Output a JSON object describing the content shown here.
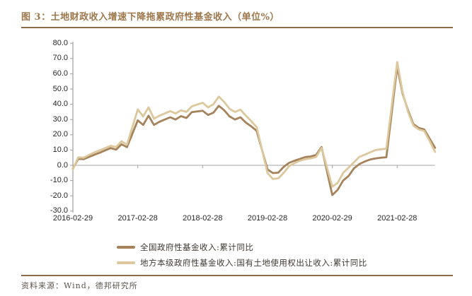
{
  "figure": {
    "title": "图 3：土地财政收入增速下降拖累政府性基金收入（单位%）",
    "source": "资料来源：Wind，德邦研究所"
  },
  "colors": {
    "title_brown": "#9e774b",
    "rule_brown": "#8c6d45",
    "axis_gray": "#9d9d9d",
    "zero_line_gray": "#a6a6a6",
    "series_national": "#a5825a",
    "series_land": "#dcc89c"
  },
  "chart_data": {
    "type": "line",
    "title": "土地财政收入增速下降拖累政府性基金收入（单位%）",
    "xlabel": "",
    "ylabel": "",
    "ylim": [
      -30,
      80
    ],
    "ytick_step": 10,
    "grid": "zero-line-only",
    "legend_position": "bottom",
    "y_ticks": [
      "80.0",
      "70.0",
      "60.0",
      "50.0",
      "40.0",
      "30.0",
      "20.0",
      "10.0",
      "0.0",
      "-10.0",
      "-20.0",
      "-30.0"
    ],
    "x_ticks": [
      "2016-02-29",
      "2017-02-28",
      "2018-02-28",
      "2019-02-28",
      "2020-02-29",
      "2021-02-28"
    ],
    "x": [
      "2016-02",
      "2016-03",
      "2016-04",
      "2016-05",
      "2016-06",
      "2016-07",
      "2016-08",
      "2016-09",
      "2016-10",
      "2016-11",
      "2016-12",
      "2017-02",
      "2017-03",
      "2017-04",
      "2017-05",
      "2017-06",
      "2017-07",
      "2017-08",
      "2017-09",
      "2017-10",
      "2017-11",
      "2017-12",
      "2018-02",
      "2018-03",
      "2018-04",
      "2018-05",
      "2018-06",
      "2018-07",
      "2018-08",
      "2018-09",
      "2018-10",
      "2018-11",
      "2018-12",
      "2019-02",
      "2019-03",
      "2019-04",
      "2019-05",
      "2019-06",
      "2019-07",
      "2019-08",
      "2019-09",
      "2019-10",
      "2019-11",
      "2019-12",
      "2020-02",
      "2020-03",
      "2020-04",
      "2020-05",
      "2020-06",
      "2020-07",
      "2020-08",
      "2020-09",
      "2020-10",
      "2020-11",
      "2020-12",
      "2021-02",
      "2021-03",
      "2021-04",
      "2021-05",
      "2021-06",
      "2021-07",
      "2021-08",
      "2021-09"
    ],
    "series": [
      {
        "name": "全国政府性基金收入:累计同比",
        "color": "#a5825a",
        "values": [
          -2.2,
          4.2,
          4.0,
          5.5,
          7.0,
          8.3,
          9.8,
          11.3,
          10.3,
          13.8,
          11.9,
          29.5,
          26.5,
          32.5,
          26.5,
          28.5,
          30.0,
          31.5,
          30.0,
          32.2,
          31.0,
          34.8,
          35.8,
          33.0,
          34.5,
          39.0,
          36.0,
          32.0,
          30.0,
          31.5,
          28.0,
          25.5,
          22.6,
          -2.7,
          -5.1,
          -4.8,
          -1.0,
          1.6,
          3.0,
          4.2,
          5.4,
          5.8,
          6.8,
          12.0,
          -19.5,
          -16.0,
          -10.0,
          -7.0,
          -2.0,
          0.8,
          2.5,
          3.8,
          4.5,
          5.0,
          5.3,
          64.5,
          47.0,
          36.0,
          27.0,
          24.5,
          23.5,
          17.5,
          11.5
        ]
      },
      {
        "name": "地方本级政府性基金收入:国有土地使用权出让收入:累计同比",
        "color": "#dcc89c",
        "values": [
          -2.6,
          5.2,
          5.0,
          6.8,
          8.5,
          9.8,
          11.3,
          12.8,
          12.0,
          15.8,
          13.5,
          36.6,
          32.0,
          38.0,
          30.5,
          32.5,
          34.0,
          35.5,
          34.0,
          36.0,
          35.0,
          38.6,
          41.0,
          38.0,
          40.0,
          45.0,
          41.5,
          37.0,
          35.0,
          36.5,
          32.5,
          29.0,
          25.0,
          -5.0,
          -9.0,
          -8.5,
          -5.0,
          -0.5,
          1.5,
          3.0,
          4.0,
          4.5,
          5.5,
          11.4,
          -14.0,
          -11.5,
          -5.0,
          -1.5,
          2.0,
          5.5,
          7.0,
          8.5,
          10.0,
          10.5,
          10.9,
          67.7,
          48.0,
          35.0,
          26.0,
          23.5,
          22.5,
          16.0,
          8.8
        ]
      }
    ]
  }
}
